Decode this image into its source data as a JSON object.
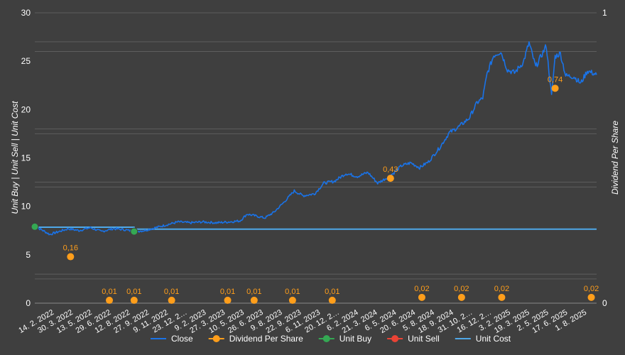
{
  "chart_data": {
    "type": "line",
    "x_tick_labels": [
      "14. 2. 2022",
      "30. 3. 2022",
      "13. 5. 2022",
      "29. 6. 2022",
      "12. 8. 2022",
      "27. 9. 2022",
      "9. 11. 2022",
      "23. 12. 2…",
      "9. 2. 2023",
      "27. 3. 2023",
      "10. 5. 2023",
      "26. 6. 2023",
      "9. 8. 2023",
      "22. 9. 2023",
      "6. 11. 2023",
      "20. 12. 2…",
      "6. 2. 2024",
      "21. 3. 2024",
      "6. 5. 2024",
      "20. 6. 2024",
      "5. 8. 2024",
      "18. 9. 2024",
      "31. 10. 2…",
      "16. 12. 2…",
      "3. 2. 2025",
      "19. 3. 2025",
      "2. 5. 2025",
      "17. 6. 2025",
      "1. 8. 2025"
    ],
    "y_left": {
      "label": "Unit Buy | Unit Sell | Unit Cost",
      "ticks": [
        "0",
        "5",
        "10",
        "15",
        "20",
        "25",
        "30"
      ],
      "range": [
        0,
        30
      ]
    },
    "y_right": {
      "label": "Dividend Per Share",
      "ticks": [
        "0",
        "1"
      ],
      "range": [
        0,
        1
      ]
    },
    "legend": {
      "position": "bottom",
      "items": [
        {
          "name": "Close",
          "color": "#1a73e8",
          "kind": "line"
        },
        {
          "name": "Dividend Per Share",
          "color": "#ff9e1b",
          "kind": "dot"
        },
        {
          "name": "Unit Buy",
          "color": "#34a853",
          "kind": "dot"
        },
        {
          "name": "Unit Sell",
          "color": "#ea4335",
          "kind": "dot"
        },
        {
          "name": "Unit Cost",
          "color": "#4fa8e8",
          "kind": "line"
        }
      ]
    },
    "close_series": [
      {
        "date": "2022-02-14",
        "close": 7.9
      },
      {
        "date": "2022-03-01",
        "close": 7.6
      },
      {
        "date": "2022-03-20",
        "close": 7.1
      },
      {
        "date": "2022-04-10",
        "close": 7.4
      },
      {
        "date": "2022-05-01",
        "close": 7.7
      },
      {
        "date": "2022-05-25",
        "close": 7.5
      },
      {
        "date": "2022-06-20",
        "close": 7.8
      },
      {
        "date": "2022-07-15",
        "close": 7.4
      },
      {
        "date": "2022-08-10",
        "close": 7.7
      },
      {
        "date": "2022-09-05",
        "close": 7.6
      },
      {
        "date": "2022-09-27",
        "close": 7.4
      },
      {
        "date": "2022-10-20",
        "close": 7.5
      },
      {
        "date": "2022-11-15",
        "close": 7.8
      },
      {
        "date": "2022-12-10",
        "close": 8.1
      },
      {
        "date": "2023-01-05",
        "close": 8.4
      },
      {
        "date": "2023-02-01",
        "close": 8.3
      },
      {
        "date": "2023-03-01",
        "close": 8.4
      },
      {
        "date": "2023-04-01",
        "close": 8.3
      },
      {
        "date": "2023-05-01",
        "close": 8.4
      },
      {
        "date": "2023-05-25",
        "close": 8.5
      },
      {
        "date": "2023-06-10",
        "close": 9.2
      },
      {
        "date": "2023-07-01",
        "close": 9.0
      },
      {
        "date": "2023-07-20",
        "close": 8.8
      },
      {
        "date": "2023-08-10",
        "close": 9.4
      },
      {
        "date": "2023-09-01",
        "close": 10.4
      },
      {
        "date": "2023-09-25",
        "close": 11.6
      },
      {
        "date": "2023-10-15",
        "close": 11.1
      },
      {
        "date": "2023-11-10",
        "close": 11.3
      },
      {
        "date": "2023-12-01",
        "close": 12.4
      },
      {
        "date": "2023-12-25",
        "close": 12.6
      },
      {
        "date": "2024-01-20",
        "close": 13.4
      },
      {
        "date": "2024-02-15",
        "close": 13.1
      },
      {
        "date": "2024-03-10",
        "close": 13.5
      },
      {
        "date": "2024-04-01",
        "close": 12.4
      },
      {
        "date": "2024-04-20",
        "close": 12.9
      },
      {
        "date": "2024-05-06",
        "close": 13.4
      },
      {
        "date": "2024-05-25",
        "close": 14.2
      },
      {
        "date": "2024-06-15",
        "close": 14.5
      },
      {
        "date": "2024-07-05",
        "close": 14.0
      },
      {
        "date": "2024-07-25",
        "close": 14.6
      },
      {
        "date": "2024-08-20",
        "close": 16.1
      },
      {
        "date": "2024-09-10",
        "close": 17.6
      },
      {
        "date": "2024-10-01",
        "close": 18.2
      },
      {
        "date": "2024-10-25",
        "close": 19.1
      },
      {
        "date": "2024-11-12",
        "close": 20.7
      },
      {
        "date": "2024-11-25",
        "close": 21.2
      },
      {
        "date": "2024-12-05",
        "close": 23.7
      },
      {
        "date": "2024-12-20",
        "close": 25.6
      },
      {
        "date": "2025-01-05",
        "close": 26.0
      },
      {
        "date": "2025-01-20",
        "close": 24.1
      },
      {
        "date": "2025-02-05",
        "close": 23.8
      },
      {
        "date": "2025-02-25",
        "close": 24.9
      },
      {
        "date": "2025-03-10",
        "close": 26.9
      },
      {
        "date": "2025-03-25",
        "close": 24.4
      },
      {
        "date": "2025-04-05",
        "close": 25.4
      },
      {
        "date": "2025-04-18",
        "close": 26.6
      },
      {
        "date": "2025-04-30",
        "close": 21.4
      },
      {
        "date": "2025-05-08",
        "close": 25.5
      },
      {
        "date": "2025-05-20",
        "close": 25.8
      },
      {
        "date": "2025-06-01",
        "close": 23.5
      },
      {
        "date": "2025-06-20",
        "close": 23.4
      },
      {
        "date": "2025-07-05",
        "close": 22.7
      },
      {
        "date": "2025-07-20",
        "close": 24.0
      },
      {
        "date": "2025-08-10",
        "close": 23.6
      }
    ],
    "unit_cost": [
      {
        "date": "2022-02-14",
        "value": 7.85
      },
      {
        "date": "2022-09-27",
        "value": 7.85
      },
      {
        "date": "2022-09-28",
        "value": 7.65
      },
      {
        "date": "2025-08-10",
        "value": 7.65
      }
    ],
    "unit_buy": [
      {
        "date": "2022-02-14",
        "value": 7.9
      },
      {
        "date": "2022-09-27",
        "value": 7.4
      }
    ],
    "unit_sell": [],
    "dividends": [
      {
        "date": "2022-05-06",
        "value": 0.16,
        "label": "0,16"
      },
      {
        "date": "2022-08-02",
        "value": 0.01,
        "label": "0,01"
      },
      {
        "date": "2022-09-27",
        "value": 0.01,
        "label": "0,01"
      },
      {
        "date": "2022-12-21",
        "value": 0.01,
        "label": "0,01"
      },
      {
        "date": "2023-04-27",
        "value": 0.01,
        "label": "0,01"
      },
      {
        "date": "2023-06-26",
        "value": 0.01,
        "label": "0,01"
      },
      {
        "date": "2023-09-21",
        "value": 0.01,
        "label": "0,01"
      },
      {
        "date": "2023-12-20",
        "value": 0.01,
        "label": "0,01"
      },
      {
        "date": "2024-04-30",
        "value": 0.43,
        "label": "0,43"
      },
      {
        "date": "2024-07-10",
        "value": 0.02,
        "label": "0,02"
      },
      {
        "date": "2024-10-08",
        "value": 0.02,
        "label": "0,02"
      },
      {
        "date": "2025-01-07",
        "value": 0.02,
        "label": "0,02"
      },
      {
        "date": "2025-05-08",
        "value": 0.74,
        "label": "0,74"
      },
      {
        "date": "2025-07-29",
        "value": 0.02,
        "label": "0,02"
      }
    ],
    "grid": true
  }
}
